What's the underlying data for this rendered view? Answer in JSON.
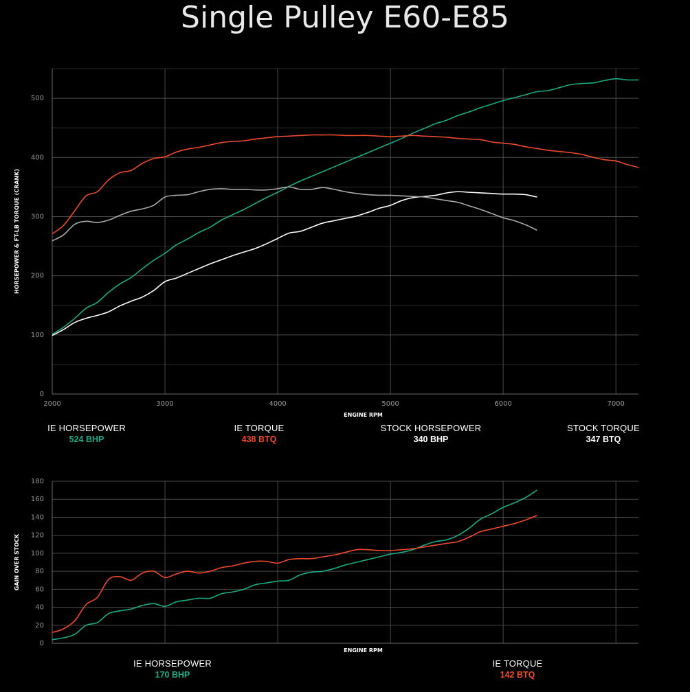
{
  "title": "Single Pulley E60-E85",
  "colors": {
    "ie_hp": "#1aab87",
    "ie_tq": "#ee4a2b",
    "stock_hp": "#ffffff",
    "stock_tq": "#a9a9a9",
    "grid": "#4a4a4a"
  },
  "chart_data": [
    {
      "type": "line",
      "xlabel": "ENGINE RPM",
      "ylabel": "HORSEPOWER & FT-LB TORQUE (CRANK)",
      "xlim": [
        2000,
        7200
      ],
      "ylim": [
        0,
        550
      ],
      "xticks": [
        2000,
        3000,
        4000,
        5000,
        6000,
        7000
      ],
      "yticks": [
        0,
        100,
        200,
        300,
        400,
        500
      ],
      "grid": true,
      "series": [
        {
          "name": "IE HORSEPOWER",
          "color": "#1aab87",
          "x": [
            2000,
            2100,
            2200,
            2300,
            2400,
            2500,
            2600,
            2700,
            2800,
            2900,
            3000,
            3100,
            3200,
            3300,
            3400,
            3500,
            3600,
            3700,
            3800,
            3900,
            4000,
            4100,
            4200,
            4300,
            4400,
            4500,
            4600,
            4700,
            4800,
            4900,
            5000,
            5100,
            5200,
            5300,
            5400,
            5500,
            5600,
            5700,
            5800,
            5900,
            6000,
            6100,
            6200,
            6300,
            6400,
            6500,
            6600,
            6700,
            6800,
            6900,
            7000,
            7100,
            7200
          ],
          "y": [
            101,
            113,
            128,
            145,
            155,
            172,
            186,
            197,
            212,
            226,
            238,
            252,
            262,
            273,
            282,
            294,
            303,
            312,
            322,
            332,
            341,
            351,
            360,
            368,
            376,
            384,
            392,
            400,
            408,
            416,
            424,
            432,
            441,
            449,
            457,
            463,
            471,
            477,
            484,
            490,
            496,
            501,
            506,
            511,
            513,
            518,
            523,
            525,
            526,
            530,
            533,
            531,
            531
          ]
        },
        {
          "name": "IE TORQUE",
          "color": "#ee4a2b",
          "x": [
            2000,
            2100,
            2200,
            2300,
            2400,
            2500,
            2600,
            2700,
            2800,
            2900,
            3000,
            3100,
            3200,
            3300,
            3400,
            3500,
            3600,
            3700,
            3800,
            3900,
            4000,
            4100,
            4200,
            4300,
            4400,
            4500,
            4600,
            4700,
            4800,
            4900,
            5000,
            5100,
            5200,
            5300,
            5400,
            5500,
            5600,
            5700,
            5800,
            5900,
            6000,
            6100,
            6200,
            6300,
            6400,
            6500,
            6600,
            6700,
            6800,
            6900,
            7000,
            7100,
            7200
          ],
          "y": [
            271,
            285,
            310,
            335,
            342,
            362,
            374,
            378,
            390,
            398,
            401,
            409,
            414,
            417,
            421,
            425,
            427,
            428,
            431,
            433,
            435,
            436,
            437,
            438,
            438,
            438,
            437,
            437,
            437,
            436,
            435,
            436,
            437,
            436,
            435,
            434,
            432,
            431,
            430,
            426,
            424,
            422,
            418,
            415,
            412,
            410,
            408,
            405,
            400,
            396,
            394,
            388,
            383
          ]
        },
        {
          "name": "STOCK HORSEPOWER",
          "color": "#ffffff",
          "x": [
            2000,
            2100,
            2200,
            2300,
            2400,
            2500,
            2600,
            2700,
            2800,
            2900,
            3000,
            3100,
            3200,
            3300,
            3400,
            3500,
            3600,
            3700,
            3800,
            3900,
            4000,
            4100,
            4200,
            4300,
            4400,
            4500,
            4600,
            4700,
            4800,
            4900,
            5000,
            5100,
            5200,
            5300,
            5400,
            5500,
            5600,
            5700,
            5800,
            5900,
            6000,
            6100,
            6200,
            6300
          ],
          "y": [
            99,
            109,
            121,
            128,
            133,
            139,
            149,
            157,
            164,
            175,
            190,
            196,
            204,
            212,
            220,
            227,
            234,
            240,
            246,
            254,
            263,
            272,
            275,
            282,
            289,
            293,
            297,
            301,
            307,
            314,
            319,
            327,
            332,
            334,
            336,
            340,
            342,
            341,
            340,
            339,
            338,
            338,
            337,
            333
          ]
        },
        {
          "name": "STOCK TORQUE",
          "color": "#a9a9a9",
          "x": [
            2000,
            2100,
            2200,
            2300,
            2400,
            2500,
            2600,
            2700,
            2800,
            2900,
            3000,
            3100,
            3200,
            3300,
            3400,
            3500,
            3600,
            3700,
            3800,
            3900,
            4000,
            4100,
            4200,
            4300,
            4400,
            4500,
            4600,
            4700,
            4800,
            4900,
            5000,
            5100,
            5200,
            5300,
            5400,
            5500,
            5600,
            5700,
            5800,
            5900,
            6000,
            6100,
            6200,
            6300
          ],
          "y": [
            259,
            269,
            287,
            292,
            290,
            294,
            302,
            309,
            313,
            319,
            333,
            336,
            337,
            342,
            346,
            347,
            346,
            346,
            345,
            345,
            347,
            350,
            346,
            346,
            349,
            346,
            342,
            339,
            337,
            336,
            336,
            335,
            334,
            333,
            330,
            327,
            324,
            318,
            312,
            305,
            298,
            293,
            286,
            277
          ]
        }
      ]
    },
    {
      "type": "line",
      "xlabel": "ENGINE RPM",
      "ylabel": "GAIN OVER STOCK",
      "xlim": [
        2000,
        7200
      ],
      "ylim": [
        0,
        180
      ],
      "xticks": [
        2000,
        3000,
        4000,
        5000,
        6000,
        7000
      ],
      "yticks": [
        0,
        20,
        40,
        60,
        80,
        100,
        120,
        140,
        160,
        180
      ],
      "grid": true,
      "series": [
        {
          "name": "IE HORSEPOWER",
          "color": "#1aab87",
          "x": [
            2000,
            2100,
            2200,
            2300,
            2400,
            2500,
            2600,
            2700,
            2800,
            2900,
            3000,
            3100,
            3200,
            3300,
            3400,
            3500,
            3600,
            3700,
            3800,
            3900,
            4000,
            4100,
            4200,
            4300,
            4400,
            4500,
            4600,
            4700,
            4800,
            4900,
            5000,
            5100,
            5200,
            5300,
            5400,
            5500,
            5600,
            5700,
            5800,
            5900,
            6000,
            6100,
            6200,
            6300
          ],
          "y": [
            4,
            6,
            10,
            20,
            23,
            33,
            36,
            38,
            42,
            44,
            41,
            46,
            48,
            50,
            50,
            55,
            57,
            60,
            65,
            67,
            69,
            70,
            76,
            79,
            80,
            83,
            87,
            90,
            93,
            96,
            99,
            101,
            104,
            109,
            113,
            115,
            120,
            128,
            138,
            144,
            151,
            156,
            162,
            170
          ]
        },
        {
          "name": "IE TORQUE",
          "color": "#ee4a2b",
          "x": [
            2000,
            2100,
            2200,
            2300,
            2400,
            2500,
            2600,
            2700,
            2800,
            2900,
            3000,
            3100,
            3200,
            3300,
            3400,
            3500,
            3600,
            3700,
            3800,
            3900,
            4000,
            4100,
            4200,
            4300,
            4400,
            4500,
            4600,
            4700,
            4800,
            4900,
            5000,
            5100,
            5200,
            5300,
            5400,
            5500,
            5600,
            5700,
            5800,
            5900,
            6000,
            6100,
            6200,
            6300
          ],
          "y": [
            12,
            16,
            25,
            43,
            51,
            71,
            74,
            70,
            78,
            80,
            73,
            77,
            80,
            78,
            80,
            84,
            86,
            89,
            91,
            91,
            89,
            93,
            94,
            94,
            96,
            98,
            101,
            104,
            104,
            103,
            103,
            104,
            105,
            107,
            109,
            111,
            113,
            118,
            124,
            127,
            130,
            133,
            137,
            142
          ]
        }
      ]
    }
  ],
  "legend_top": [
    {
      "name": "IE HORSEPOWER",
      "value": "524 BHP"
    },
    {
      "name": "IE TORQUE",
      "value": "438 BTQ"
    },
    {
      "name": "STOCK HORSEPOWER",
      "value": "340 BHP"
    },
    {
      "name": "STOCK TORQUE",
      "value": "347 BTQ"
    }
  ],
  "legend_bottom": [
    {
      "name": "IE HORSEPOWER",
      "value": "170 BHP"
    },
    {
      "name": "IE TORQUE",
      "value": "142 BTQ"
    }
  ]
}
